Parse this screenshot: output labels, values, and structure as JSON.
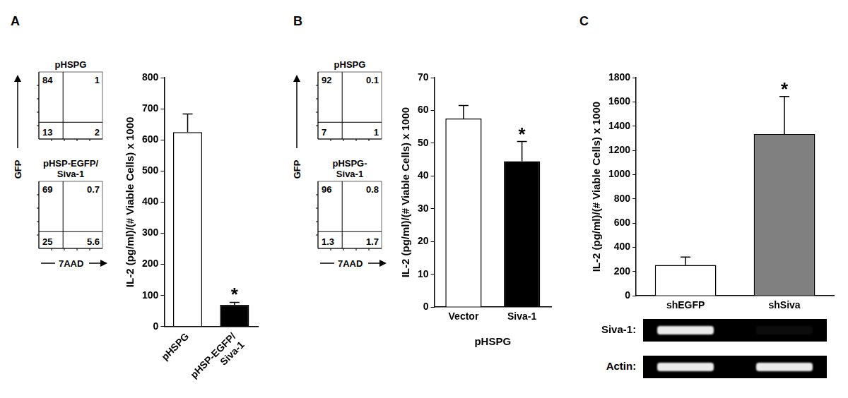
{
  "chart_data": [
    {
      "panel": "A",
      "type": "quadrant",
      "x_label": "7AAD",
      "y_label": "GFP",
      "tick_labels": false,
      "plots": [
        {
          "title": "pHSPG",
          "quadrants": {
            "upper_left": 84,
            "upper_right": 1,
            "lower_left": 13,
            "lower_right": 2
          }
        },
        {
          "title": [
            "pHSP-EGFP/",
            "Siva-1"
          ],
          "quadrants": {
            "upper_left": 69,
            "upper_right": 0.7,
            "lower_left": 25,
            "lower_right": 5.6
          }
        }
      ]
    },
    {
      "panel": "A",
      "type": "bar",
      "y_label": "IL-2 (pg/ml)/(# Viable Cells) x 1000",
      "categories": [
        "pHSPG",
        [
          "pHSP-EGFP/",
          "Siva-1"
        ]
      ],
      "values": [
        625,
        70
      ],
      "errors": [
        58,
        8
      ],
      "annotations": [
        null,
        "*"
      ],
      "colors": [
        "#ffffff",
        "#000000"
      ],
      "ylim": [
        0,
        800
      ],
      "yticks": [
        0,
        100,
        200,
        300,
        400,
        500,
        600,
        700,
        800
      ],
      "grid": false
    },
    {
      "panel": "B",
      "type": "quadrant",
      "x_label": "7AAD",
      "y_label": "GFP",
      "tick_labels": false,
      "plots": [
        {
          "title": "pHSPG",
          "quadrants": {
            "upper_left": 92,
            "upper_right": 0.1,
            "lower_left": 7,
            "lower_right": 1
          }
        },
        {
          "title": [
            "pHSPG-",
            "Siva-1"
          ],
          "quadrants": {
            "upper_left": 96,
            "upper_right": 0.8,
            "lower_left": 1.3,
            "lower_right": 1.7
          }
        }
      ]
    },
    {
      "panel": "B",
      "type": "bar",
      "y_label": "IL-2 (pg/ml)/(# Viable Cells) x 1000",
      "x_label": "pHSPG",
      "categories": [
        "Vector",
        "Siva-1"
      ],
      "values": [
        57.5,
        44.5
      ],
      "errors": [
        4,
        6
      ],
      "annotations": [
        null,
        "*"
      ],
      "colors": [
        "#ffffff",
        "#000000"
      ],
      "ylim": [
        0,
        70
      ],
      "yticks": [
        0,
        10,
        20,
        30,
        40,
        50,
        60,
        70
      ],
      "grid": false
    },
    {
      "panel": "C",
      "type": "bar",
      "y_label": "IL-2 (pg/ml)/(# Viable Cells) x 1000",
      "categories": [
        "shEGFP",
        "shSiva"
      ],
      "values": [
        255,
        1335
      ],
      "errors": [
        65,
        310
      ],
      "annotations": [
        null,
        "*"
      ],
      "colors": [
        "#ffffff",
        "#808080"
      ],
      "ylim": [
        0,
        1800
      ],
      "yticks": [
        0,
        200,
        400,
        600,
        800,
        1000,
        1200,
        1400,
        1600,
        1800
      ],
      "grid": false
    },
    {
      "panel": "C",
      "type": "gel",
      "rows": [
        {
          "label": "Siva-1:",
          "intensity": [
            1,
            0.05
          ]
        },
        {
          "label": "Actin:",
          "intensity": [
            1,
            1
          ]
        }
      ]
    }
  ]
}
